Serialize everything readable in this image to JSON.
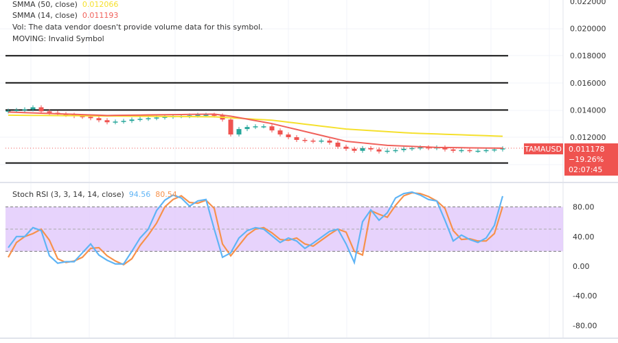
{
  "chart_data": [
    {
      "type": "candlestick",
      "symbol": "TAMAUSD",
      "indicators": [
        {
          "label": "SMMA (50, close)",
          "value": "0.012066",
          "color": "#f5e02c"
        },
        {
          "label": "SMMA (14, close)",
          "value": "0.011193",
          "color": "#f0605a"
        }
      ],
      "vol_note": "Vol: The data vendor doesn't provide volume data for this symbol.",
      "moving_note": "MOVING: Invalid Symbol",
      "y_ticks": [
        "0.022000",
        "0.020000",
        "0.018000",
        "0.016000",
        "0.014000",
        "0.012000"
      ],
      "ylim": [
        0.0096,
        0.0221
      ],
      "horizontal_levels": [
        0.018,
        0.016,
        0.014,
        0.0101
      ],
      "close": [
        0.01395,
        0.014,
        0.01405,
        0.0142,
        0.0139,
        0.0138,
        0.0137,
        0.01365,
        0.01355,
        0.0135,
        0.0134,
        0.01325,
        0.0131,
        0.01315,
        0.0132,
        0.0133,
        0.01335,
        0.0134,
        0.01345,
        0.0135,
        0.01355,
        0.01355,
        0.0136,
        0.01365,
        0.01365,
        0.0136,
        0.0133,
        0.0122,
        0.0126,
        0.01275,
        0.0128,
        0.0128,
        0.0125,
        0.0122,
        0.012,
        0.0118,
        0.01175,
        0.0117,
        0.01175,
        0.0116,
        0.0113,
        0.01115,
        0.011,
        0.0112,
        0.0111,
        0.01095,
        0.011,
        0.01105,
        0.01115,
        0.0112,
        0.01125,
        0.0112,
        0.01125,
        0.0111,
        0.011,
        0.01105,
        0.011,
        0.011,
        0.01105,
        0.0111,
        0.011178
      ],
      "smma50": [
        [
          0,
          0.01362
        ],
        [
          25,
          0.0135
        ],
        [
          32,
          0.01325
        ],
        [
          41,
          0.0126
        ],
        [
          49,
          0.0123
        ],
        [
          60,
          0.01207
        ]
      ],
      "smma14": [
        [
          0,
          0.01385
        ],
        [
          12,
          0.0136
        ],
        [
          25,
          0.0137
        ],
        [
          27,
          0.01355
        ],
        [
          32,
          0.013
        ],
        [
          41,
          0.0117
        ],
        [
          46,
          0.0114
        ],
        [
          52,
          0.01125
        ],
        [
          60,
          0.01119
        ]
      ],
      "last_price": {
        "symbol": "TAMAUSD",
        "price": "0.011178",
        "change": "−19.26%",
        "countdown": "02:07:45",
        "color": "#ef5350"
      }
    },
    {
      "type": "line",
      "title": "Stoch RSI (3, 3, 14, 14, close)",
      "series": [
        {
          "name": "K",
          "value": "94.56",
          "color": "#5fb4f5",
          "values": [
            25,
            40,
            40,
            52,
            48,
            14,
            4,
            6,
            6,
            18,
            30,
            15,
            8,
            3,
            3,
            20,
            38,
            50,
            75,
            89,
            96,
            92,
            81,
            88,
            90,
            50,
            12,
            18,
            38,
            48,
            52,
            50,
            41,
            32,
            38,
            34,
            24,
            31,
            39,
            47,
            50,
            30,
            5,
            60,
            76,
            62,
            72,
            92,
            98,
            100,
            96,
            90,
            88,
            62,
            34,
            42,
            36,
            32,
            38,
            55,
            94.56
          ]
        },
        {
          "name": "D",
          "value": "80.54",
          "color": "#f7914a",
          "values": [
            12,
            32,
            40,
            44,
            50,
            35,
            10,
            5,
            7,
            12,
            24,
            25,
            14,
            7,
            2,
            10,
            28,
            42,
            58,
            80,
            90,
            95,
            86,
            85,
            89,
            78,
            30,
            14,
            28,
            42,
            50,
            52,
            45,
            36,
            35,
            38,
            30,
            27,
            35,
            43,
            50,
            46,
            20,
            15,
            75,
            70,
            66,
            82,
            95,
            99,
            98,
            94,
            88,
            78,
            48,
            36,
            37,
            34,
            34,
            44,
            80.54
          ]
        }
      ],
      "bands": [
        80,
        50,
        20
      ],
      "band_color": "#e1c8fb",
      "y_ticks": [
        "80.00",
        "40.00",
        "0.00",
        "-40.00",
        "-80.00"
      ]
    }
  ]
}
